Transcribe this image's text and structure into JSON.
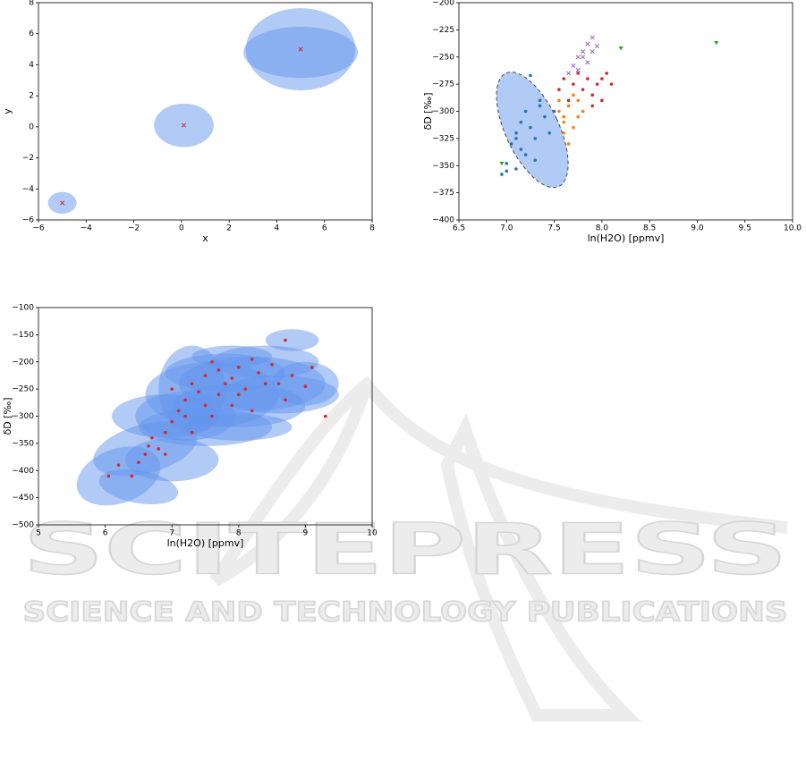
{
  "chart_data": [
    {
      "type": "scatter",
      "xlabel": "x",
      "ylabel": "y",
      "xlim": [
        -6,
        8
      ],
      "ylim": [
        -6,
        8
      ],
      "xticks": [
        {
          "value": -6,
          "label": "−6"
        },
        {
          "value": -4,
          "label": "−4"
        },
        {
          "value": -2,
          "label": "−2"
        },
        0,
        2,
        4,
        6,
        8
      ],
      "yticks": [
        {
          "value": -6,
          "label": "−6"
        },
        {
          "value": -4,
          "label": "−4"
        },
        {
          "value": -2,
          "label": "−2"
        },
        0,
        2,
        4,
        6,
        8
      ],
      "ellipse_color": "#6495ed",
      "ellipse_alpha": 0.5,
      "ellipses": [
        {
          "cx": -5,
          "cy": -4.9,
          "width": 1.2,
          "height": 1.4,
          "angle": 0
        },
        {
          "cx": 0.1,
          "cy": 0.1,
          "width": 2.5,
          "height": 2.8,
          "angle": 0
        },
        {
          "cx": 5,
          "cy": 5,
          "width": 4.6,
          "height": 5.3,
          "angle": 0
        },
        {
          "cx": 5,
          "cy": 4.8,
          "width": 4.8,
          "height": 3.3,
          "angle": 0
        }
      ],
      "series": [
        {
          "color": "#d62728",
          "marker": "x",
          "x": [
            -5,
            0.1,
            5
          ],
          "values": [
            -4.9,
            0.1,
            5
          ]
        }
      ]
    },
    {
      "type": "scatter",
      "xlabel": "ln(H2O) [ppmv]",
      "ylabel": "δD [‰]",
      "xlim": [
        6.5,
        10
      ],
      "ylim": [
        -400,
        -200
      ],
      "xticks": [
        6.5,
        {
          "value": 7,
          "label": "7.0"
        },
        7.5,
        {
          "value": 8,
          "label": "8.0"
        },
        8.5,
        {
          "value": 9,
          "label": "9.0"
        },
        9.5,
        {
          "value": 10,
          "label": "10.0"
        }
      ],
      "yticks": [
        {
          "value": -400,
          "label": "−400"
        },
        {
          "value": -375,
          "label": "−375"
        },
        {
          "value": -350,
          "label": "−350"
        },
        {
          "value": -325,
          "label": "−325"
        },
        {
          "value": -300,
          "label": "−300"
        },
        {
          "value": -275,
          "label": "−275"
        },
        {
          "value": -250,
          "label": "−250"
        },
        {
          "value": -225,
          "label": "−225"
        },
        {
          "value": -200,
          "label": "−200"
        }
      ],
      "ellipse_color": "#6495ed",
      "ellipse_alpha": 0.5,
      "ellipses": [
        {
          "cx": 7.27,
          "cy": -317,
          "width": 0.56,
          "height": 115,
          "angle": -25,
          "linestyle": "dashed"
        }
      ],
      "series": [
        {
          "color": "#1f77b4",
          "marker": "o",
          "x": [
            7.0,
            6.95,
            7.1,
            7.0,
            7.05,
            7.1,
            7.15,
            7.2,
            7.25,
            7.3,
            7.35,
            7.2,
            7.3,
            7.4,
            7.45,
            7.15,
            7.25,
            7.35,
            7.5,
            7.1
          ],
          "values": [
            -355,
            -358,
            -353,
            -348,
            -330,
            -320,
            -310,
            -300,
            -315,
            -325,
            -290,
            -340,
            -345,
            -305,
            -320,
            -335,
            -267,
            -295,
            -300,
            -325
          ]
        },
        {
          "color": "#ff7f0e",
          "marker": "o",
          "x": [
            7.55,
            7.6,
            7.65,
            7.7,
            7.75,
            7.6,
            7.65,
            7.7,
            7.8,
            7.55,
            7.75,
            7.6
          ],
          "values": [
            -300,
            -310,
            -295,
            -285,
            -305,
            -320,
            -330,
            -315,
            -300,
            -290,
            -290,
            -305
          ]
        },
        {
          "color": "#d62728",
          "marker": "o",
          "x": [
            7.55,
            7.6,
            7.7,
            7.8,
            7.85,
            7.9,
            7.95,
            8.0,
            8.05,
            8.1,
            7.75,
            7.9,
            7.65,
            8.0
          ],
          "values": [
            -280,
            -270,
            -275,
            -280,
            -270,
            -285,
            -275,
            -270,
            -265,
            -275,
            -265,
            -295,
            -290,
            -290
          ]
        },
        {
          "color": "#9467bd",
          "marker": "x",
          "x": [
            7.65,
            7.7,
            7.75,
            7.8,
            7.85,
            7.9,
            7.85,
            7.75,
            7.8,
            7.9,
            7.95
          ],
          "values": [
            -265,
            -258,
            -250,
            -245,
            -238,
            -232,
            -255,
            -262,
            -250,
            -245,
            -240
          ]
        },
        {
          "color": "#2ca02c",
          "marker": "v",
          "x": [
            8.2,
            9.2,
            6.95
          ],
          "values": [
            -242,
            -237,
            -348
          ]
        }
      ]
    },
    {
      "type": "scatter",
      "xlabel": "ln(H2O) [ppmv]",
      "ylabel": "δD [‰]",
      "xlim": [
        5,
        10
      ],
      "ylim": [
        -500,
        -100
      ],
      "xticks": [
        5,
        6,
        7,
        8,
        9,
        10
      ],
      "yticks": [
        {
          "value": -500,
          "label": "−500"
        },
        {
          "value": -450,
          "label": "−450"
        },
        {
          "value": -400,
          "label": "−400"
        },
        {
          "value": -350,
          "label": "−350"
        },
        {
          "value": -300,
          "label": "−300"
        },
        {
          "value": -250,
          "label": "−250"
        },
        {
          "value": -200,
          "label": "−200"
        },
        {
          "value": -150,
          "label": "−150"
        },
        {
          "value": -100,
          "label": "−100"
        }
      ],
      "ellipse_color": "#6495ed",
      "ellipse_alpha": 0.5,
      "ellipses": [
        {
          "cx": 6.2,
          "cy": -410,
          "width": 1.3,
          "height": 100,
          "angle": -20
        },
        {
          "cx": 6.5,
          "cy": -430,
          "width": 1.2,
          "height": 60,
          "angle": 10
        },
        {
          "cx": 6.6,
          "cy": -360,
          "width": 1.6,
          "height": 90,
          "angle": -15
        },
        {
          "cx": 7.0,
          "cy": -380,
          "width": 1.4,
          "height": 80,
          "angle": 0
        },
        {
          "cx": 6.9,
          "cy": -300,
          "width": 1.6,
          "height": 80,
          "angle": 0
        },
        {
          "cx": 7.2,
          "cy": -300,
          "width": 1.5,
          "height": 90,
          "angle": 0
        },
        {
          "cx": 7.3,
          "cy": -250,
          "width": 1.0,
          "height": 160,
          "angle": 0
        },
        {
          "cx": 7.5,
          "cy": -320,
          "width": 2.0,
          "height": 70,
          "angle": 0
        },
        {
          "cx": 7.6,
          "cy": -260,
          "width": 2.0,
          "height": 120,
          "angle": 0
        },
        {
          "cx": 7.8,
          "cy": -220,
          "width": 1.8,
          "height": 70,
          "angle": 0
        },
        {
          "cx": 8.0,
          "cy": -280,
          "width": 2.0,
          "height": 80,
          "angle": 0
        },
        {
          "cx": 8.2,
          "cy": -240,
          "width": 2.2,
          "height": 100,
          "angle": 0
        },
        {
          "cx": 8.4,
          "cy": -200,
          "width": 1.6,
          "height": 60,
          "angle": 0
        },
        {
          "cx": 8.6,
          "cy": -260,
          "width": 1.8,
          "height": 70,
          "angle": 0
        },
        {
          "cx": 8.8,
          "cy": -160,
          "width": 0.8,
          "height": 40,
          "angle": 0
        },
        {
          "cx": 9.0,
          "cy": -240,
          "width": 1.0,
          "height": 80,
          "angle": 0
        },
        {
          "cx": 8.0,
          "cy": -320,
          "width": 1.6,
          "height": 50,
          "angle": 0
        },
        {
          "cx": 7.9,
          "cy": -190,
          "width": 1.2,
          "height": 40,
          "angle": 0
        }
      ],
      "series": [
        {
          "color": "#d62728",
          "marker": "o",
          "x": [
            6.05,
            6.2,
            6.4,
            6.5,
            6.6,
            6.65,
            6.7,
            6.8,
            6.9,
            7.0,
            7.0,
            7.1,
            7.2,
            7.2,
            7.3,
            7.4,
            7.5,
            7.5,
            7.6,
            7.7,
            7.7,
            7.8,
            7.9,
            7.9,
            8.0,
            8.0,
            8.1,
            8.2,
            8.3,
            8.4,
            8.5,
            8.6,
            8.7,
            8.7,
            8.8,
            9.0,
            9.1,
            9.3,
            8.2,
            7.3,
            6.9,
            7.6
          ],
          "values": [
            -410,
            -390,
            -410,
            -385,
            -370,
            -355,
            -340,
            -360,
            -330,
            -310,
            -250,
            -290,
            -300,
            -270,
            -240,
            -255,
            -280,
            -225,
            -300,
            -260,
            -215,
            -240,
            -230,
            -280,
            -210,
            -260,
            -250,
            -195,
            -220,
            -240,
            -205,
            -240,
            -160,
            -270,
            -225,
            -245,
            -210,
            -300,
            -290,
            -330,
            -370,
            -200
          ]
        }
      ]
    }
  ],
  "watermark": {
    "title": "SCITEPRESS",
    "subtitle": "SCIENCE AND TECHNOLOGY PUBLICATIONS"
  }
}
